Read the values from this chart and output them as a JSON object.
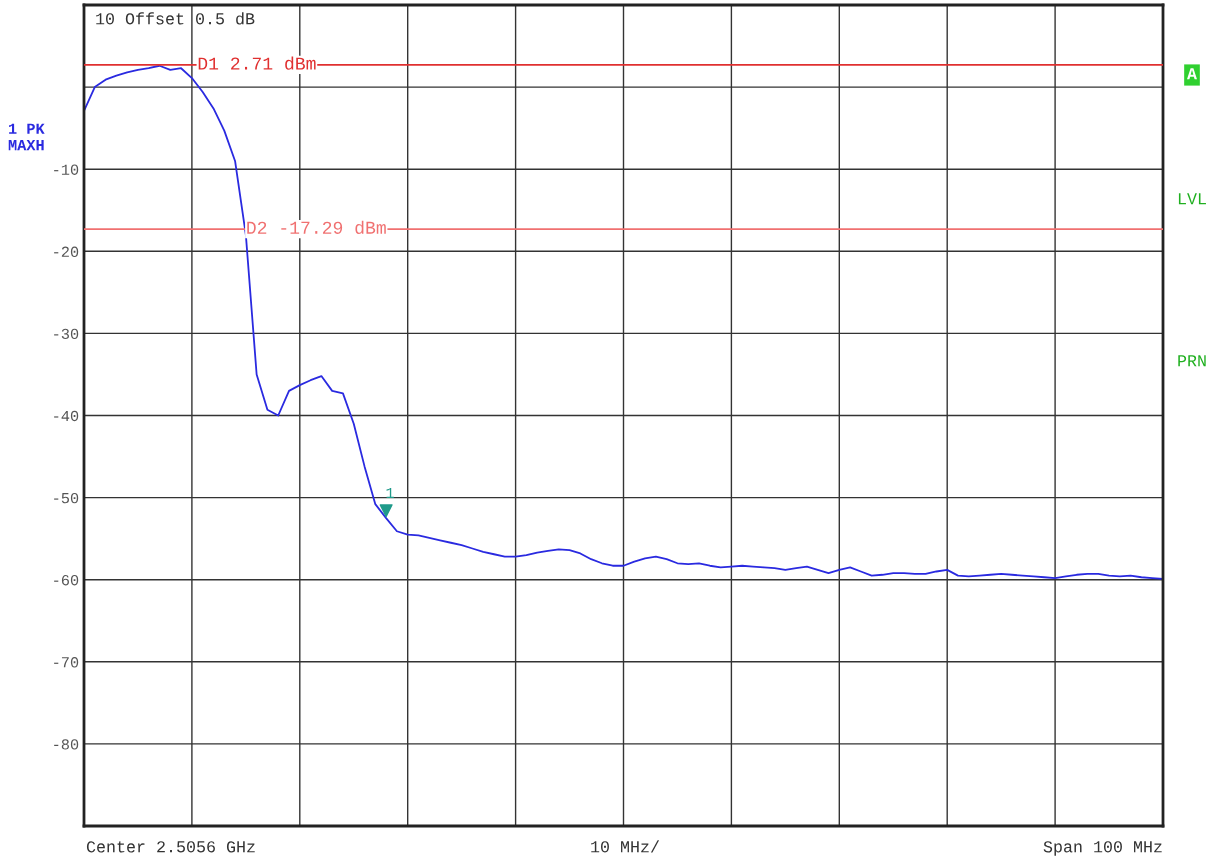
{
  "chart_data": {
    "type": "line",
    "categories": [
      null,
      null,
      null,
      null,
      null,
      null,
      null,
      null,
      null,
      null,
      null,
      null,
      null,
      null,
      null,
      null,
      null,
      null,
      null,
      null,
      null,
      null,
      null,
      null,
      null,
      null,
      null,
      null,
      null,
      null,
      null,
      null,
      null,
      null,
      null,
      null,
      null,
      null,
      null,
      null,
      null,
      null,
      null,
      null,
      null,
      null,
      null,
      null,
      null,
      null,
      null,
      null,
      null,
      null,
      null,
      null,
      null,
      null,
      null,
      null,
      null,
      null,
      null,
      null,
      null,
      null,
      null,
      null,
      null,
      null,
      null,
      null,
      null,
      null,
      null,
      null,
      null,
      null,
      null,
      null,
      null,
      null,
      null,
      null,
      null,
      null,
      null,
      null,
      null,
      null,
      null,
      null,
      null,
      null,
      null,
      null,
      null,
      null,
      null,
      null,
      null
    ],
    "ylim": [
      -90,
      10
    ],
    "yticks": [
      -80,
      -70,
      -60,
      -50,
      -40,
      -30,
      -20,
      -10,
      {
        "value": 0,
        "label": null
      },
      {
        "value": 10,
        "label": null
      }
    ],
    "grid": true,
    "series": [
      {
        "color": "#2a2ae0",
        "values": [
          -2.9,
          0.0,
          0.9,
          1.4,
          1.8,
          2.1,
          2.3,
          2.6,
          2.1,
          2.3,
          1.1,
          -0.6,
          -2.6,
          -5.3,
          -9.0,
          -18.0,
          -35.0,
          -39.3,
          -40.0,
          -37.0,
          -36.3,
          -35.7,
          -35.2,
          -37.0,
          -37.3,
          -41.0,
          -46.2,
          -50.8,
          -52.5,
          -54.1,
          -54.5,
          -54.6,
          -54.9,
          -55.2,
          -55.5,
          -55.8,
          -56.2,
          -56.6,
          -56.9,
          -57.2,
          -57.2,
          -57.0,
          -56.7,
          -56.5,
          -56.3,
          -56.4,
          -56.8,
          -57.5,
          -58.0,
          -58.3,
          -58.3,
          -57.8,
          -57.4,
          -57.2,
          -57.5,
          -58.0,
          -58.1,
          -58.0,
          -58.3,
          -58.5,
          -58.4,
          -58.3,
          -58.4,
          -58.5,
          -58.6,
          -58.8,
          -58.6,
          -58.4,
          -58.8,
          -59.2,
          -58.8,
          -58.5,
          -59.0,
          -59.5,
          -59.4,
          -59.2,
          -59.2,
          -59.3,
          -59.3,
          -59.0,
          -58.8,
          -59.5,
          -59.6,
          -59.5,
          -59.4,
          -59.3,
          -59.4,
          -59.5,
          -59.6,
          -59.7,
          -59.8,
          -59.6,
          -59.4,
          -59.3,
          -59.3,
          -59.5,
          -59.6,
          -59.5,
          -59.7,
          -59.8,
          -59.9
        ]
      },
      {
        "type": "scatter",
        "marker": "triangle",
        "color": "#1f9a8a",
        "values": [
          null,
          null,
          null,
          null,
          null,
          null,
          null,
          null,
          null,
          null,
          null,
          null,
          null,
          null,
          null,
          null,
          null,
          null,
          null,
          null,
          null,
          null,
          null,
          null,
          null,
          null,
          null,
          null,
          -51.6,
          null,
          null,
          null,
          null,
          null,
          null,
          null,
          null,
          null,
          null,
          null,
          null,
          null,
          null,
          null,
          null,
          null,
          null,
          null,
          null,
          null,
          null,
          null,
          null,
          null,
          null,
          null,
          null,
          null,
          null,
          null,
          null,
          null,
          null,
          null,
          null,
          null,
          null,
          null,
          null,
          null,
          null,
          null,
          null,
          null,
          null,
          null,
          null,
          null,
          null,
          null,
          null,
          null,
          null,
          null,
          null,
          null,
          null,
          null,
          null,
          null,
          null,
          null,
          null,
          null,
          null,
          null,
          null,
          null,
          null,
          null,
          null
        ]
      }
    ],
    "ref_lines": [
      {
        "axis": "y",
        "value": 2.71,
        "label": "D1 2.71 dBm",
        "color": "#e03030"
      },
      {
        "axis": "y",
        "value": -17.29,
        "label": "D2 -17.29 dBm",
        "color": "#f07070"
      }
    ],
    "annotations": [
      "10 Offset 0.5 dB",
      "1 PK\nMAXH",
      "A",
      "LVL",
      "PRN",
      "Center 2.5056 GHz",
      "10 MHz/",
      "Span 100 MHz",
      "1"
    ]
  }
}
